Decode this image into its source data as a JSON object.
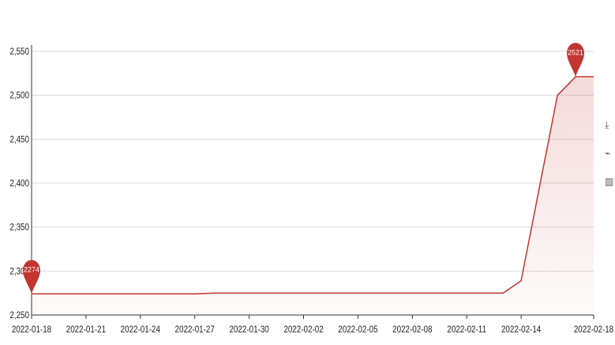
{
  "chart_data": {
    "type": "line",
    "title": "",
    "xlabel": "",
    "ylabel": "",
    "x_ticks": [
      "2022-01-18",
      "2022-01-21",
      "2022-01-24",
      "2022-01-27",
      "2022-01-30",
      "2022-02-02",
      "2022-02-05",
      "2022-02-08",
      "2022-02-11",
      "2022-02-14",
      "2022-02-18"
    ],
    "y_ticks": [
      "2,550",
      "2,500",
      "2,450",
      "2,400",
      "2,350",
      "2,300",
      "2,250"
    ],
    "ylim": [
      2250,
      2550
    ],
    "grid": true,
    "legend": "none",
    "series": [
      {
        "color": "#c23531",
        "points": [
          {
            "x": "2022-01-18",
            "y": 2274
          },
          {
            "x": "2022-01-27",
            "y": 2274
          },
          {
            "x": "2022-01-28",
            "y": 2275
          },
          {
            "x": "2022-02-13",
            "y": 2275
          },
          {
            "x": "2022-02-14",
            "y": 2289
          },
          {
            "x": "2022-02-16",
            "y": 2500
          },
          {
            "x": "2022-02-17",
            "y": 2521
          },
          {
            "x": "2022-02-18",
            "y": 2521
          }
        ]
      }
    ],
    "markers": [
      {
        "x": "2022-01-18",
        "y": 2274,
        "label": "2274"
      },
      {
        "x": "2022-02-17",
        "y": 2521,
        "label": "2521"
      }
    ]
  },
  "toolbox": {
    "icons": [
      "download-icon",
      "line-chart-icon",
      "bar-chart-icon"
    ],
    "glyphs": [
      "⤓",
      "⌁",
      "▥"
    ]
  }
}
